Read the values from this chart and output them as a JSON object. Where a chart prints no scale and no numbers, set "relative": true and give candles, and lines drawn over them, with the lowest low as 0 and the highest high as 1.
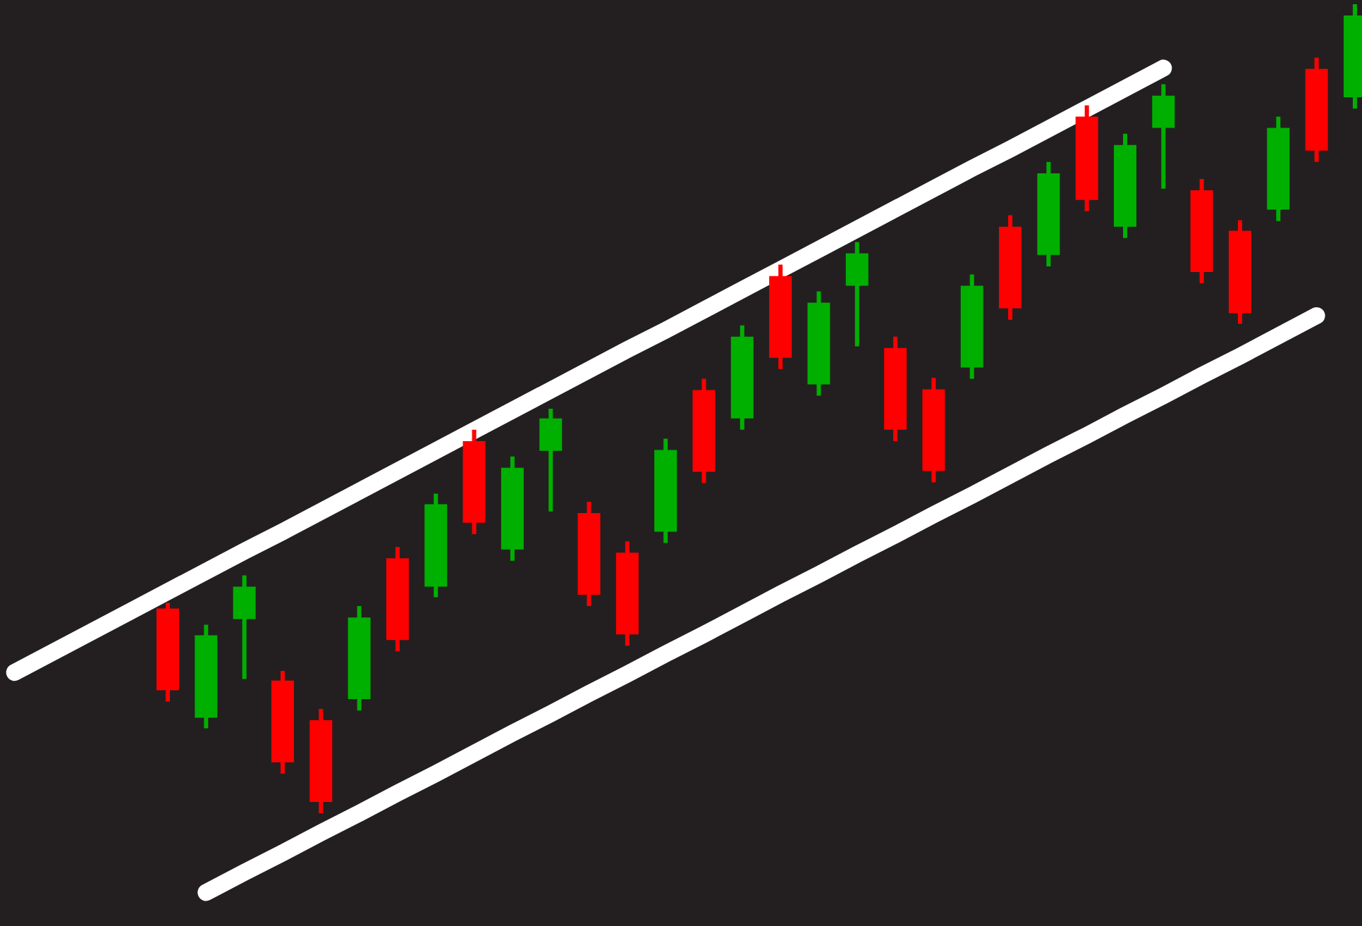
{
  "chart_data": {
    "type": "candlestick",
    "relative": true,
    "categories": [
      null,
      null,
      null,
      null,
      null,
      null,
      null,
      null,
      null,
      null,
      null,
      null,
      null,
      null,
      null,
      null,
      null,
      null,
      null,
      null,
      null,
      null,
      null,
      null,
      null,
      null,
      null,
      null,
      null,
      null,
      null,
      null,
      null,
      null,
      null,
      null
    ],
    "ohlc": [
      null,
      null,
      null,
      null,
      [
        0.253,
        0.26,
        0.138,
        0.152
      ],
      [
        0.118,
        0.233,
        0.105,
        0.22
      ],
      [
        0.24,
        0.294,
        0.166,
        0.28
      ],
      [
        0.164,
        0.176,
        0.049,
        0.063
      ],
      [
        0.115,
        0.129,
        0,
        0.014
      ],
      [
        0.141,
        0.256,
        0.127,
        0.242
      ],
      [
        0.315,
        0.329,
        0.2,
        0.214
      ],
      [
        0.28,
        0.395,
        0.267,
        0.382
      ],
      [
        0.46,
        0.474,
        0.345,
        0.359
      ],
      [
        0.326,
        0.441,
        0.312,
        0.427
      ],
      [
        0.448,
        0.5,
        0.373,
        0.488
      ],
      [
        0.371,
        0.385,
        0.256,
        0.27
      ],
      [
        0.322,
        0.336,
        0.207,
        0.221
      ],
      [
        0.348,
        0.463,
        0.334,
        0.449
      ],
      [
        0.523,
        0.537,
        0.408,
        0.422
      ],
      [
        0.488,
        0.603,
        0.474,
        0.589
      ],
      [
        0.664,
        0.678,
        0.549,
        0.563
      ],
      [
        0.53,
        0.645,
        0.516,
        0.631
      ],
      [
        0.652,
        0.706,
        0.577,
        0.692
      ],
      [
        0.575,
        0.589,
        0.46,
        0.474
      ],
      [
        0.524,
        0.538,
        0.409,
        0.423
      ],
      [
        0.551,
        0.666,
        0.537,
        0.652
      ],
      [
        0.725,
        0.739,
        0.61,
        0.624
      ],
      [
        0.69,
        0.805,
        0.676,
        0.791
      ],
      [
        0.861,
        0.875,
        0.744,
        0.758
      ],
      [
        0.725,
        0.84,
        0.711,
        0.826
      ],
      [
        0.847,
        0.901,
        0.772,
        0.887
      ],
      [
        0.77,
        0.784,
        0.655,
        0.669
      ],
      [
        0.72,
        0.733,
        0.605,
        0.618
      ],
      [
        0.746,
        0.861,
        0.732,
        0.847
      ],
      [
        0.92,
        0.934,
        0.805,
        0.819
      ],
      [
        0.885,
        1,
        0.871,
        0.986
      ]
    ],
    "colors": [
      null,
      null,
      null,
      null,
      "#ff0000",
      "#00b000",
      "#00b000",
      "#ff0000",
      "#ff0000",
      "#00b000",
      "#ff0000",
      "#00b000",
      "#ff0000",
      "#00b000",
      "#00b000",
      "#ff0000",
      "#ff0000",
      "#00b000",
      "#ff0000",
      "#00b000",
      "#ff0000",
      "#00b000",
      "#00b000",
      "#ff0000",
      "#ff0000",
      "#00b000",
      "#ff0000",
      "#00b000",
      "#ff0000",
      "#00b000",
      "#00b000",
      "#ff0000",
      "#ff0000",
      "#00b000",
      "#ff0000",
      "#00b000"
    ],
    "series": [
      {
        "type": "line",
        "color": "#ffffff",
        "values": [
          0.174,
          0.199,
          0.224,
          0.249,
          0.274,
          0.299,
          0.324,
          0.348,
          0.373,
          0.398,
          0.423,
          0.448,
          0.473,
          0.498,
          0.523,
          0.548,
          0.573,
          0.597,
          0.622,
          0.647,
          0.672,
          0.697,
          0.722,
          0.747,
          0.772,
          0.797,
          0.821,
          0.846,
          0.871,
          0.896,
          0.921,
          null,
          null,
          null,
          null,
          null
        ]
      },
      {
        "type": "line",
        "color": "#ffffff",
        "values": [
          null,
          null,
          null,
          null,
          null,
          -0.098,
          -0.073,
          -0.049,
          -0.024,
          0.0,
          0.025,
          0.049,
          0.074,
          0.099,
          0.123,
          0.148,
          0.172,
          0.197,
          0.221,
          0.246,
          0.271,
          0.295,
          0.32,
          0.344,
          0.369,
          0.393,
          0.418,
          0.443,
          0.467,
          0.492,
          0.516,
          0.541,
          0.565,
          0.59,
          0.615,
          null
        ]
      }
    ]
  }
}
